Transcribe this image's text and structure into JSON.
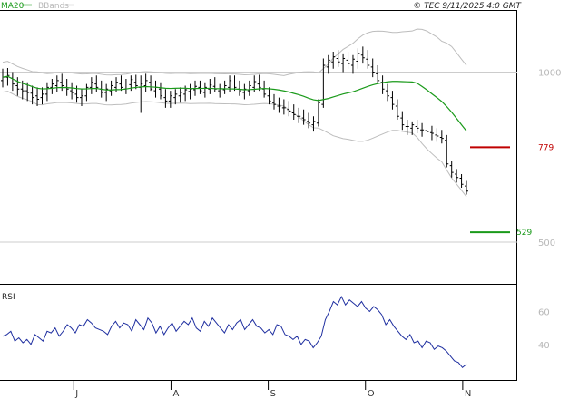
{
  "header": {
    "ma_label": "MA20",
    "bbands_label": "BBands",
    "copyright": "© TEC 9/11/2025 4:0 GMT"
  },
  "colors": {
    "price": "#000000",
    "ma": "#1a9a1a",
    "bands": "#bdbdbd",
    "rsi": "#1f2fa0",
    "resistance": "#c00000",
    "support": "#1a9a1a",
    "grid": "#cccccc"
  },
  "chart_data": [
    {
      "type": "line",
      "panel": "price",
      "x_ticks": [
        "J",
        "A",
        "S",
        "O",
        "N"
      ],
      "y_ticks": [
        "1000",
        "500"
      ],
      "levels": [
        {
          "name": "resistance",
          "label": "779",
          "value": 779
        },
        {
          "name": "support",
          "label": "529",
          "value": 529
        }
      ],
      "ylim": [
        380,
        1180
      ],
      "bars": [
        [
          975,
          1010,
          955,
          985
        ],
        [
          985,
          1012,
          960,
          990
        ],
        [
          982,
          1000,
          945,
          965
        ],
        [
          960,
          985,
          930,
          950
        ],
        [
          950,
          975,
          920,
          945
        ],
        [
          945,
          970,
          915,
          940
        ],
        [
          938,
          960,
          905,
          925
        ],
        [
          930,
          955,
          900,
          920
        ],
        [
          925,
          955,
          905,
          935
        ],
        [
          935,
          970,
          915,
          955
        ],
        [
          955,
          980,
          935,
          965
        ],
        [
          960,
          990,
          940,
          975
        ],
        [
          970,
          995,
          945,
          960
        ],
        [
          955,
          980,
          930,
          950
        ],
        [
          945,
          970,
          920,
          940
        ],
        [
          935,
          960,
          910,
          925
        ],
        [
          925,
          950,
          900,
          930
        ],
        [
          930,
          965,
          915,
          955
        ],
        [
          955,
          985,
          935,
          970
        ],
        [
          965,
          990,
          940,
          955
        ],
        [
          950,
          975,
          925,
          940
        ],
        [
          940,
          965,
          915,
          950
        ],
        [
          945,
          975,
          930,
          960
        ],
        [
          955,
          985,
          940,
          970
        ],
        [
          965,
          990,
          945,
          955
        ],
        [
          950,
          980,
          935,
          968
        ],
        [
          963,
          990,
          945,
          978
        ],
        [
          970,
          992,
          950,
          960
        ],
        [
          955,
          990,
          880,
          965
        ],
        [
          960,
          995,
          940,
          975
        ],
        [
          970,
          990,
          945,
          950
        ],
        [
          945,
          975,
          925,
          955
        ],
        [
          950,
          970,
          920,
          930
        ],
        [
          925,
          950,
          895,
          915
        ],
        [
          915,
          945,
          895,
          930
        ],
        [
          925,
          950,
          905,
          935
        ],
        [
          930,
          955,
          910,
          940
        ],
        [
          935,
          960,
          915,
          948
        ],
        [
          943,
          965,
          920,
          950
        ],
        [
          948,
          975,
          930,
          958
        ],
        [
          955,
          975,
          935,
          945
        ],
        [
          940,
          970,
          925,
          955
        ],
        [
          950,
          980,
          935,
          962
        ],
        [
          958,
          985,
          940,
          950
        ],
        [
          945,
          965,
          925,
          952
        ],
        [
          948,
          975,
          935,
          960
        ],
        [
          955,
          990,
          940,
          975
        ],
        [
          968,
          990,
          945,
          955
        ],
        [
          950,
          975,
          930,
          945
        ],
        [
          940,
          965,
          920,
          950
        ],
        [
          945,
          975,
          930,
          960
        ],
        [
          955,
          990,
          940,
          972
        ],
        [
          965,
          992,
          945,
          955
        ],
        [
          950,
          975,
          925,
          935
        ],
        [
          930,
          955,
          905,
          915
        ],
        [
          910,
          935,
          890,
          905
        ],
        [
          900,
          925,
          880,
          900
        ],
        [
          895,
          920,
          875,
          895
        ],
        [
          890,
          915,
          870,
          885
        ],
        [
          880,
          905,
          860,
          875
        ],
        [
          870,
          895,
          850,
          870
        ],
        [
          865,
          890,
          845,
          860
        ],
        [
          855,
          880,
          835,
          850
        ],
        [
          845,
          870,
          825,
          855
        ],
        [
          850,
          920,
          840,
          910
        ],
        [
          905,
          1040,
          895,
          1020
        ],
        [
          1015,
          1050,
          995,
          1035
        ],
        [
          1030,
          1060,
          1010,
          1045
        ],
        [
          1040,
          1065,
          1015,
          1030
        ],
        [
          1025,
          1055,
          1000,
          1040
        ],
        [
          1035,
          1060,
          1010,
          1025
        ],
        [
          1020,
          1050,
          995,
          1038
        ],
        [
          1032,
          1070,
          1010,
          1055
        ],
        [
          1050,
          1075,
          1025,
          1042
        ],
        [
          1038,
          1065,
          1010,
          1020
        ],
        [
          1015,
          1040,
          985,
          1000
        ],
        [
          995,
          1020,
          965,
          975
        ],
        [
          970,
          990,
          935,
          950
        ],
        [
          945,
          965,
          915,
          930
        ],
        [
          925,
          945,
          890,
          905
        ],
        [
          900,
          920,
          860,
          870
        ],
        [
          865,
          885,
          830,
          845
        ],
        [
          840,
          860,
          815,
          840
        ],
        [
          835,
          855,
          815,
          845
        ],
        [
          840,
          860,
          820,
          835
        ],
        [
          830,
          850,
          810,
          830
        ],
        [
          828,
          848,
          805,
          825
        ],
        [
          822,
          842,
          800,
          820
        ],
        [
          815,
          835,
          795,
          812
        ],
        [
          808,
          830,
          790,
          805
        ],
        [
          800,
          815,
          720,
          730
        ],
        [
          725,
          740,
          690,
          705
        ],
        [
          700,
          715,
          675,
          690
        ],
        [
          688,
          700,
          660,
          670
        ],
        [
          665,
          680,
          640,
          650
        ]
      ]
    },
    {
      "type": "line",
      "panel": "rsi",
      "title": "RSI",
      "y_ticks": [
        "60",
        "40"
      ],
      "ylim": [
        19,
        74
      ],
      "values": [
        45,
        46,
        48,
        42,
        44,
        41,
        43,
        40,
        46,
        44,
        42,
        48,
        47,
        50,
        45,
        48,
        52,
        50,
        47,
        52,
        51,
        55,
        53,
        50,
        49,
        48,
        46,
        51,
        54,
        50,
        53,
        52,
        48,
        55,
        52,
        49,
        56,
        53,
        47,
        51,
        46,
        50,
        53,
        48,
        51,
        54,
        52,
        56,
        50,
        48,
        54,
        51,
        56,
        53,
        50,
        47,
        52,
        49,
        53,
        55,
        49,
        52,
        55,
        51,
        50,
        47,
        49,
        46,
        52,
        51,
        46,
        45,
        43,
        45,
        40,
        43,
        42,
        38,
        41,
        45,
        55,
        60,
        66,
        64,
        69,
        64,
        67,
        65,
        63,
        66,
        62,
        60,
        63,
        61,
        58,
        52,
        55,
        51,
        48,
        45,
        43,
        46,
        41,
        42,
        38,
        42,
        41,
        37,
        39,
        38,
        36,
        33,
        30,
        29,
        26,
        28
      ]
    }
  ]
}
